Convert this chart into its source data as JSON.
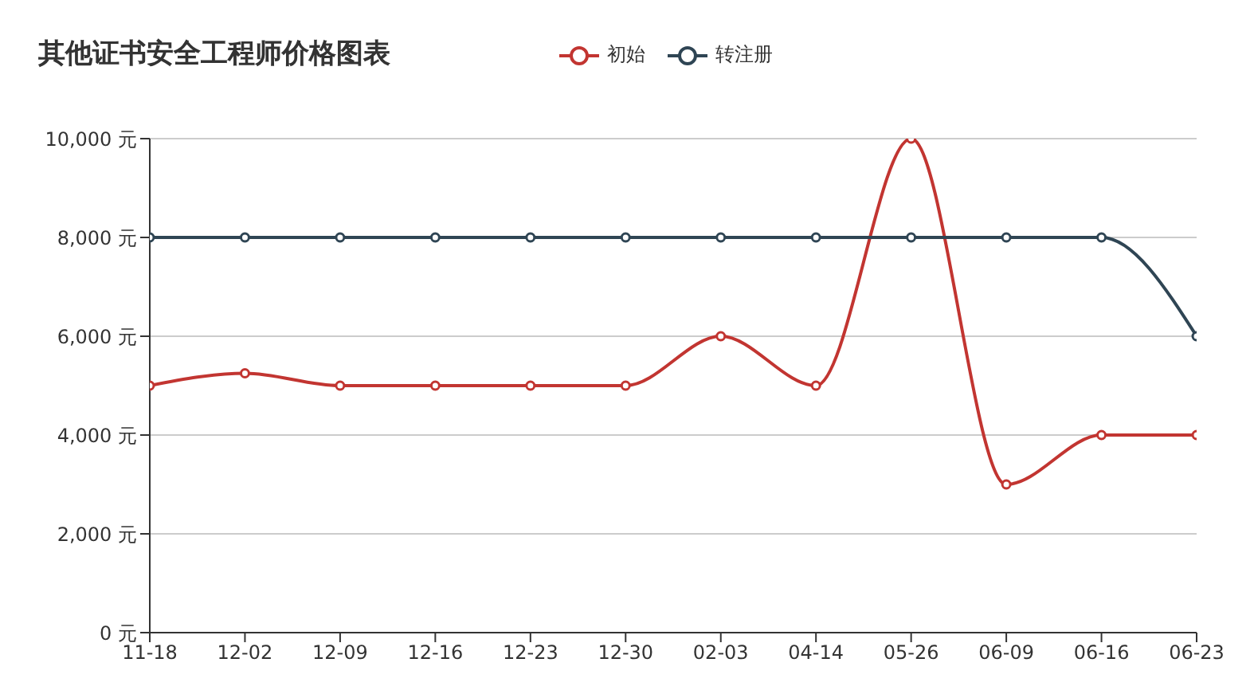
{
  "chart_data": {
    "type": "line",
    "title": "其他证书安全工程师价格图表",
    "categories": [
      "11-18",
      "12-02",
      "12-09",
      "12-16",
      "12-23",
      "12-30",
      "02-03",
      "04-14",
      "05-26",
      "06-09",
      "06-16",
      "06-23"
    ],
    "series": [
      {
        "name": "初始",
        "color": "#c23531",
        "values": [
          5000,
          5250,
          5000,
          5000,
          5000,
          5000,
          6000,
          5000,
          10000,
          3000,
          4000,
          4000
        ]
      },
      {
        "name": "转注册",
        "color": "#2f4554",
        "values": [
          8000,
          8000,
          8000,
          8000,
          8000,
          8000,
          8000,
          8000,
          8000,
          8000,
          8000,
          6000
        ]
      }
    ],
    "ylim": [
      0,
      10000
    ],
    "yticks": [
      {
        "value": 0,
        "label": "0 元"
      },
      {
        "value": 2000,
        "label": "2,000 元"
      },
      {
        "value": 4000,
        "label": "4,000 元"
      },
      {
        "value": 6000,
        "label": "6,000 元"
      },
      {
        "value": 8000,
        "label": "8,000 元"
      },
      {
        "value": 10000,
        "label": "10,000 元"
      }
    ],
    "grid": "y",
    "legend": "top",
    "marker": "circle",
    "line_style": "solid"
  }
}
